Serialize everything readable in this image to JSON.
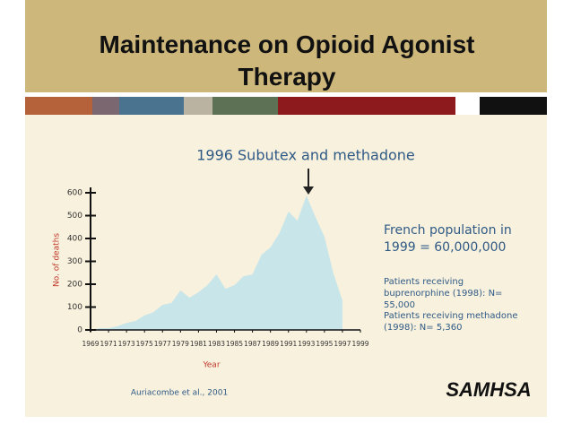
{
  "chart_data": {
    "type": "area",
    "title": "Maintenance on Opioid Agonist Therapy",
    "color": "#c8e6ea",
    "x": [
      1969,
      1970,
      1971,
      1972,
      1973,
      1974,
      1975,
      1976,
      1977,
      1978,
      1979,
      1980,
      1981,
      1982,
      1983,
      1984,
      1985,
      1986,
      1987,
      1988,
      1989,
      1990,
      1991,
      1992,
      1993,
      1994,
      1995,
      1996,
      1997
    ],
    "values": [
      0,
      8,
      8,
      16,
      31,
      39,
      63,
      78,
      110,
      118,
      173,
      141,
      165,
      196,
      243,
      180,
      196,
      235,
      243,
      329,
      361,
      424,
      518,
      478,
      588,
      494,
      408,
      247,
      129
    ],
    "xlim": [
      1969,
      1999
    ],
    "xticks": [
      1969,
      1971,
      1973,
      1975,
      1977,
      1979,
      1981,
      1983,
      1985,
      1987,
      1989,
      1991,
      1993,
      1995,
      1997,
      1999
    ],
    "ylim": [
      0,
      600
    ],
    "yticks": [
      0,
      100,
      200,
      300,
      400,
      500,
      600
    ],
    "xlabel": "Year",
    "ylabel": "No. of deaths",
    "annotation": "1996 Subutex and methadone",
    "notes": [
      "French population in 1999 = 60,000,000",
      "Patients receiving buprenorphine (1998): N= 55,000",
      "Patients receiving methadone (1998): N= 5,360"
    ],
    "source": "Auriacombe et al., 2001",
    "logo": "SAMHSA"
  }
}
